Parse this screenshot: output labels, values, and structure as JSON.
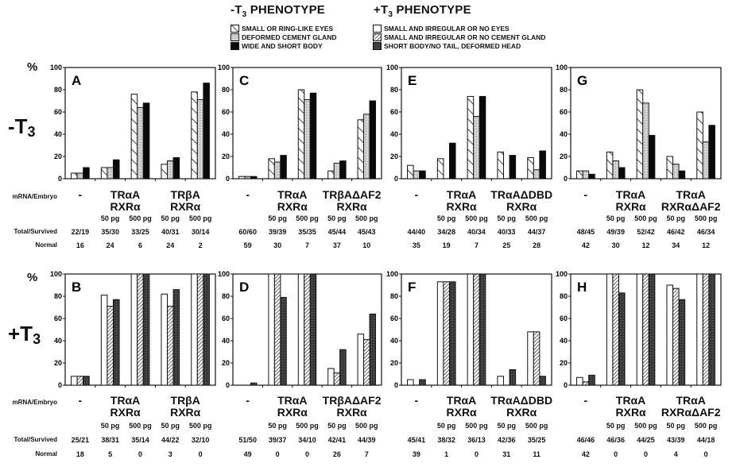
{
  "legend": {
    "minus_title": "-T",
    "minus_sub": "3",
    "minus_suffix": " PHENOTYPE",
    "plus_title": "+T",
    "plus_sub": "3",
    "plus_suffix": " PHENOTYPE",
    "minus_items": [
      {
        "label": "SMALL OR RING-LIKE EYES",
        "pattern": "backslash"
      },
      {
        "label": "DEFORMED  CEMENT GLAND",
        "pattern": "dots"
      },
      {
        "label": "WIDE AND SHORT BODY",
        "pattern": "black"
      }
    ],
    "plus_items": [
      {
        "label": "SMALL AND IRREGULAR OR NO EYES",
        "pattern": "white"
      },
      {
        "label": "SMALL AND IRREGULAR OR NO CEMENT GLAND",
        "pattern": "slash"
      },
      {
        "label": "SHORT BODY/NO TAIL, DEFORMED HEAD",
        "pattern": "darkdots"
      }
    ]
  },
  "rows": {
    "minus_label": "-T",
    "minus_sub": "3",
    "plus_label": "+T",
    "plus_sub": "3",
    "pct": "%",
    "mrna_label": "mRNA/Embryo",
    "total_label": "Total/Survived",
    "normal_label": "Normal"
  },
  "chart_data": [
    {
      "type": "bar",
      "panel": "A",
      "condition": "-T3",
      "ylim": [
        0,
        100
      ],
      "yticks": [
        "0",
        "20",
        "40",
        "60",
        "80",
        "100"
      ],
      "series_names": [
        "Small or ring-like eyes",
        "Deformed cement gland",
        "Wide and short body"
      ],
      "groups": [
        {
          "label": "-",
          "span": 1
        },
        {
          "label": "TRαA\nRXRα",
          "span": 2
        },
        {
          "label": "TRβA\nRXRα",
          "span": 2
        }
      ],
      "categories": [
        "-",
        "50 pg",
        "500 pg",
        "50 pg",
        "500 pg"
      ],
      "values": [
        [
          5,
          5,
          10
        ],
        [
          10,
          10,
          17
        ],
        [
          76,
          64,
          68
        ],
        [
          13,
          16,
          19
        ],
        [
          78,
          71,
          86
        ]
      ],
      "total_survived": [
        "22/19",
        "35/30",
        "33/25",
        "40/31",
        "30/14"
      ],
      "normal": [
        "16",
        "24",
        "6",
        "24",
        "2"
      ]
    },
    {
      "type": "bar",
      "panel": "C",
      "condition": "-T3",
      "ylim": [
        0,
        100
      ],
      "yticks": [
        "0",
        "20",
        "40",
        "60",
        "80",
        "100"
      ],
      "series_names": [
        "Small or ring-like eyes",
        "Deformed cement gland",
        "Wide and short body"
      ],
      "groups": [
        {
          "label": "-",
          "span": 1
        },
        {
          "label": "TRαA\nRXRα",
          "span": 2
        },
        {
          "label": "TRβAΔAF2\nRXRα",
          "span": 2
        }
      ],
      "categories": [
        "-",
        "50 pg",
        "500 pg",
        "50 pg",
        "500 pg"
      ],
      "values": [
        [
          2,
          2,
          2
        ],
        [
          18,
          15,
          21
        ],
        [
          80,
          71,
          77
        ],
        [
          7,
          14,
          16
        ],
        [
          53,
          58,
          70
        ]
      ],
      "total_survived": [
        "60/60",
        "39/39",
        "35/35",
        "45/44",
        "45/43"
      ],
      "normal": [
        "59",
        "30",
        "7",
        "37",
        "10"
      ]
    },
    {
      "type": "bar",
      "panel": "E",
      "condition": "-T3",
      "ylim": [
        0,
        100
      ],
      "yticks": [
        "0",
        "20",
        "40",
        "60",
        "80",
        "100"
      ],
      "series_names": [
        "Small or ring-like eyes",
        "Deformed cement gland",
        "Wide and short body"
      ],
      "groups": [
        {
          "label": "-",
          "span": 1
        },
        {
          "label": "TRαA\nRXRα",
          "span": 2
        },
        {
          "label": "TRαAΔDBD\nRXRα",
          "span": 2
        }
      ],
      "categories": [
        "-",
        "50 pg",
        "500 pg",
        "50 pg",
        "500 pg"
      ],
      "values": [
        [
          12,
          7,
          7
        ],
        [
          18,
          0,
          32
        ],
        [
          74,
          56,
          74
        ],
        [
          24,
          0,
          21
        ],
        [
          19,
          8,
          25
        ]
      ],
      "total_survived": [
        "44/40",
        "34/28",
        "40/34",
        "40/33",
        "44/37"
      ],
      "normal": [
        "35",
        "19",
        "7",
        "25",
        "28"
      ]
    },
    {
      "type": "bar",
      "panel": "G",
      "condition": "-T3",
      "ylim": [
        0,
        100
      ],
      "yticks": [
        "0",
        "20",
        "40",
        "60",
        "80",
        "100"
      ],
      "series_names": [
        "Small or ring-like eyes",
        "Deformed cement gland",
        "Wide and short body"
      ],
      "groups": [
        {
          "label": "-",
          "span": 1
        },
        {
          "label": "TRαA\nRXRα",
          "span": 2
        },
        {
          "label": "TRαA\nRXRαΔAF2",
          "span": 2
        }
      ],
      "categories": [
        "-",
        "50 pg",
        "500 pg",
        "50 pg",
        "500 pg"
      ],
      "values": [
        [
          7,
          7,
          4
        ],
        [
          24,
          16,
          10
        ],
        [
          80,
          68,
          39
        ],
        [
          20,
          13,
          7
        ],
        [
          60,
          33,
          48
        ]
      ],
      "total_survived": [
        "48/45",
        "49/39",
        "52/42",
        "46/42",
        "46/34"
      ],
      "normal": [
        "42",
        "30",
        "12",
        "34",
        "12"
      ]
    },
    {
      "type": "bar",
      "panel": "B",
      "condition": "+T3",
      "ylim": [
        0,
        100
      ],
      "yticks": [
        "0",
        "20",
        "40",
        "60",
        "80",
        "100"
      ],
      "series_names": [
        "Small and irregular or no eyes",
        "Small and irregular or no cement gland",
        "Short body/no tail, deformed head"
      ],
      "groups": [
        {
          "label": "-",
          "span": 1
        },
        {
          "label": "TRαA\nRXRα",
          "span": 2
        },
        {
          "label": "TRβA\nRXRα",
          "span": 2
        }
      ],
      "categories": [
        "-",
        "50 pg",
        "500 pg",
        "50 pg",
        "500 pg"
      ],
      "values": [
        [
          8,
          8,
          8
        ],
        [
          81,
          71,
          77
        ],
        [
          100,
          100,
          100
        ],
        [
          82,
          71,
          86
        ],
        [
          100,
          100,
          100
        ]
      ],
      "total_survived": [
        "25/21",
        "38/31",
        "35/14",
        "44/22",
        "32/10"
      ],
      "normal": [
        "18",
        "5",
        "0",
        "3",
        "0"
      ]
    },
    {
      "type": "bar",
      "panel": "D",
      "condition": "+T3",
      "ylim": [
        0,
        100
      ],
      "yticks": [
        "0",
        "20",
        "40",
        "60",
        "80",
        "100"
      ],
      "series_names": [
        "Small and irregular or no eyes",
        "Small and irregular or no cement gland",
        "Short body/no tail, deformed head"
      ],
      "groups": [
        {
          "label": "-",
          "span": 1
        },
        {
          "label": "TRαA\nRXRα",
          "span": 2
        },
        {
          "label": "TRβAΔAF2\nRXRα",
          "span": 2
        }
      ],
      "categories": [
        "-",
        "50 pg",
        "500 pg",
        "50 pg",
        "500 pg"
      ],
      "values": [
        [
          0,
          0,
          2
        ],
        [
          100,
          100,
          79
        ],
        [
          100,
          100,
          100
        ],
        [
          15,
          11,
          32
        ],
        [
          46,
          41,
          64
        ]
      ],
      "total_survived": [
        "51/50",
        "39/37",
        "34/10",
        "42/41",
        "44/39"
      ],
      "normal": [
        "49",
        "0",
        "0",
        "26",
        "7"
      ]
    },
    {
      "type": "bar",
      "panel": "F",
      "condition": "+T3",
      "ylim": [
        0,
        100
      ],
      "yticks": [
        "0",
        "20",
        "40",
        "60",
        "80",
        "100"
      ],
      "series_names": [
        "Small and irregular or no eyes",
        "Small and irregular or no cement gland",
        "Short body/no tail, deformed head"
      ],
      "groups": [
        {
          "label": "-",
          "span": 1
        },
        {
          "label": "TRαA\nRXRα",
          "span": 2
        },
        {
          "label": "TRαAΔDBD\nRXRα",
          "span": 2
        }
      ],
      "categories": [
        "-",
        "50 pg",
        "500 pg",
        "50 pg",
        "500 pg"
      ],
      "values": [
        [
          5,
          0,
          5
        ],
        [
          93,
          93,
          93
        ],
        [
          100,
          100,
          100
        ],
        [
          8,
          0,
          14
        ],
        [
          48,
          48,
          8
        ]
      ],
      "total_survived": [
        "45/41",
        "38/32",
        "36/13",
        "42/36",
        "35/25"
      ],
      "normal": [
        "39",
        "1",
        "0",
        "31",
        "11"
      ]
    },
    {
      "type": "bar",
      "panel": "H",
      "condition": "+T3",
      "ylim": [
        0,
        100
      ],
      "yticks": [
        "0",
        "20",
        "40",
        "60",
        "80",
        "100"
      ],
      "series_names": [
        "Small and irregular or no eyes",
        "Small and irregular or no cement gland",
        "Short body/no tail, deformed head"
      ],
      "groups": [
        {
          "label": "-",
          "span": 1
        },
        {
          "label": "TRαA\nRXRα",
          "span": 2
        },
        {
          "label": "TRαA\nRXRαΔAF2",
          "span": 2
        }
      ],
      "categories": [
        "-",
        "50 pg",
        "500 pg",
        "50 pg",
        "500 pg"
      ],
      "values": [
        [
          7,
          3,
          9
        ],
        [
          100,
          100,
          83
        ],
        [
          100,
          100,
          100
        ],
        [
          90,
          87,
          77
        ],
        [
          100,
          100,
          100
        ]
      ],
      "total_survived": [
        "46/46",
        "46/36",
        "44/25",
        "43/39",
        "44/18"
      ],
      "normal": [
        "42",
        "0",
        "0",
        "4",
        "0"
      ]
    }
  ]
}
